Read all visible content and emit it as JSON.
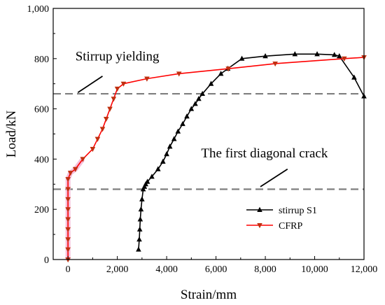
{
  "chart_data": {
    "type": "line",
    "title": "",
    "xlabel": "Strain/mm",
    "ylabel": "Load/kN",
    "xlim": [
      -600,
      12000
    ],
    "ylim": [
      0,
      1000
    ],
    "x_ticks": [
      0,
      2000,
      4000,
      6000,
      8000,
      10000,
      12000
    ],
    "x_tick_labels": [
      "0",
      "2,000",
      "4,000",
      "6,000",
      "8,000",
      "10,000",
      "12,000"
    ],
    "y_ticks": [
      0,
      200,
      400,
      600,
      800,
      1000
    ],
    "y_tick_labels": [
      "0",
      "200",
      "400",
      "600",
      "800",
      "1,000"
    ],
    "grid": false,
    "legend_position": "bottom-right",
    "reference_lines": [
      {
        "y": 660,
        "style": "dashed",
        "color": "#7f7f7f"
      },
      {
        "y": 280,
        "style": "dashed",
        "color": "#7f7f7f"
      }
    ],
    "annotations": [
      {
        "text": "Stirrup yielding",
        "x": 300,
        "y": 793,
        "pointer": [
          [
            400,
            665
          ],
          [
            1400,
            730
          ]
        ]
      },
      {
        "text": "The first diagonal crack",
        "x": 5400,
        "y": 407,
        "pointer": [
          [
            7800,
            290
          ],
          [
            8900,
            360
          ]
        ]
      }
    ],
    "series": [
      {
        "name": "stirrup S1",
        "color": "#000000",
        "marker": "triangle-up",
        "x": [
          2860,
          2890,
          2910,
          2930,
          2960,
          3000,
          3050,
          3100,
          3150,
          3220,
          3400,
          3650,
          3850,
          4000,
          4130,
          4300,
          4460,
          4650,
          4820,
          5000,
          5160,
          5300,
          5450,
          5800,
          6200,
          6480,
          7050,
          8000,
          9200,
          10100,
          10800,
          11000,
          11600,
          12000
        ],
        "y": [
          40,
          80,
          120,
          160,
          200,
          240,
          280,
          290,
          300,
          310,
          330,
          360,
          390,
          420,
          450,
          480,
          510,
          540,
          570,
          600,
          620,
          640,
          660,
          700,
          740,
          760,
          800,
          810,
          818,
          818,
          815,
          810,
          725,
          650
        ]
      },
      {
        "name": "CFRP",
        "color": "#ff0000",
        "marker": "triangle-down",
        "x": [
          0,
          0,
          0,
          0,
          0,
          0,
          0,
          0,
          0,
          100,
          300,
          600,
          1000,
          1200,
          1400,
          1550,
          1700,
          1850,
          2000,
          2250,
          3200,
          4500,
          6500,
          8400,
          11200,
          12000
        ],
        "y": [
          0,
          40,
          80,
          120,
          160,
          200,
          240,
          280,
          320,
          345,
          360,
          400,
          440,
          480,
          520,
          560,
          600,
          640,
          680,
          700,
          720,
          740,
          760,
          780,
          800,
          805
        ]
      }
    ]
  }
}
